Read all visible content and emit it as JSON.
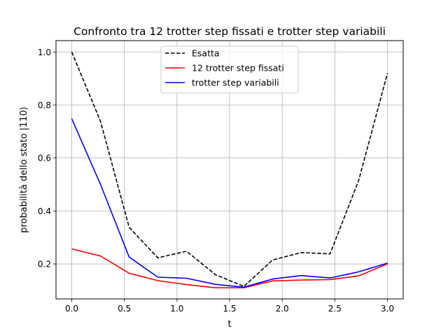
{
  "chart_data": {
    "type": "line",
    "title": "Confronto tra 12 trotter step fissati e trotter step variabili",
    "xlabel": "t",
    "ylabel": "probabilità dello stato |110⟩",
    "xlim": [
      -0.15,
      3.15
    ],
    "ylim": [
      0.068,
      1.043
    ],
    "grid": true,
    "legend_position": "top-center",
    "xticks": [
      0.0,
      0.5,
      1.0,
      1.5,
      2.0,
      2.5,
      3.0
    ],
    "xtick_labels": [
      "0.0",
      "0.5",
      "1.0",
      "1.5",
      "2.0",
      "2.5",
      "3.0"
    ],
    "yticks": [
      0.2,
      0.4,
      0.6,
      0.8,
      1.0
    ],
    "ytick_labels": [
      "0.2",
      "0.4",
      "0.6",
      "0.8",
      "1.0"
    ],
    "x": [
      0.0,
      0.273,
      0.545,
      0.818,
      1.091,
      1.364,
      1.636,
      1.909,
      2.182,
      2.455,
      2.727,
      3.0
    ],
    "series": [
      {
        "name": "Esatta",
        "color": "#000000",
        "dash": "dashed",
        "values": [
          1.0,
          0.738,
          0.338,
          0.223,
          0.248,
          0.16,
          0.115,
          0.215,
          0.243,
          0.238,
          0.515,
          0.92
        ]
      },
      {
        "name": "12 trotter step fissati",
        "color": "#ff0000",
        "dash": "solid",
        "values": [
          0.257,
          0.23,
          0.165,
          0.137,
          0.122,
          0.11,
          0.11,
          0.136,
          0.139,
          0.141,
          0.155,
          0.2
        ]
      },
      {
        "name": "trotter step variabili",
        "color": "#0000ff",
        "dash": "solid",
        "values": [
          0.748,
          0.5,
          0.226,
          0.15,
          0.146,
          0.123,
          0.112,
          0.143,
          0.156,
          0.147,
          0.17,
          0.203
        ]
      }
    ]
  }
}
